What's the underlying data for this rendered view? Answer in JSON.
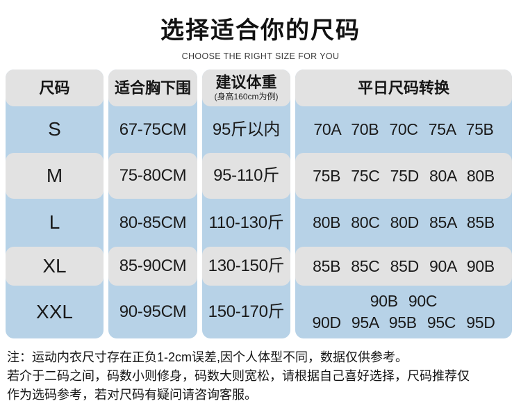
{
  "header": {
    "title": "选择适合你的尺码",
    "subtitle": "CHOOSE THE RIGHT SIZE FOR YOU"
  },
  "table": {
    "headers": [
      {
        "label": "尺码"
      },
      {
        "label": "适合胸下围"
      },
      {
        "label": "建议体重",
        "sublabel": "(身高160cm为例)"
      },
      {
        "label": "平日尺码转换"
      }
    ],
    "rows": [
      {
        "size": "S",
        "bust": "67-75CM",
        "weight": "95斤以内",
        "conv": "70A 70B 70C 75A 75B"
      },
      {
        "size": "M",
        "bust": "75-80CM",
        "weight": "95-110斤",
        "conv": "75B 75C 75D 80A 80B"
      },
      {
        "size": "L",
        "bust": "80-85CM",
        "weight": "110-130斤",
        "conv": "80B 80C 80D 85A 85B"
      },
      {
        "size": "XL",
        "bust": "85-90CM",
        "weight": "130-150斤",
        "conv": "85B 85C 85D 90A 90B"
      },
      {
        "size": "XXL",
        "bust": "90-95CM",
        "weight": "150-170斤",
        "conv": "90B 90C",
        "conv2": "90D 95A 95B 95C 95D"
      }
    ]
  },
  "notes": {
    "line1": "注：运动内衣尺寸存在正负1-2cm误差,因个人体型不同，数据仅供参考。",
    "line2": "若介于二码之间，码数小则修身，码数大则宽松，请根据自己喜好选择，尺码推荐仅",
    "line3": "作为选码参考，若对尺码有疑问请咨询客服。"
  },
  "colors": {
    "row_blue": "#b7d2e7",
    "row_gray": "#e2e2e2"
  },
  "chart_data": {
    "type": "table",
    "title": "选择适合你的尺码 (CHOOSE THE RIGHT SIZE FOR YOU)",
    "columns": [
      "尺码",
      "适合胸下围",
      "建议体重(身高160cm为例)",
      "平日尺码转换"
    ],
    "rows": [
      [
        "S",
        "67-75CM",
        "95斤以内",
        "70A 70B 70C 75A 75B"
      ],
      [
        "M",
        "75-80CM",
        "95-110斤",
        "75B 75C 75D 80A 80B"
      ],
      [
        "L",
        "80-85CM",
        "110-130斤",
        "80B 80C 80D 85A 85B"
      ],
      [
        "XL",
        "85-90CM",
        "130-150斤",
        "85B 85C 85D 90A 90B"
      ],
      [
        "XXL",
        "90-95CM",
        "150-170斤",
        "90B 90C 90D 95A 95B 95C 95D"
      ]
    ],
    "layout": "header row gray; data rows alternate blue/gray (S, L, XXL blue); footnotes below table"
  }
}
